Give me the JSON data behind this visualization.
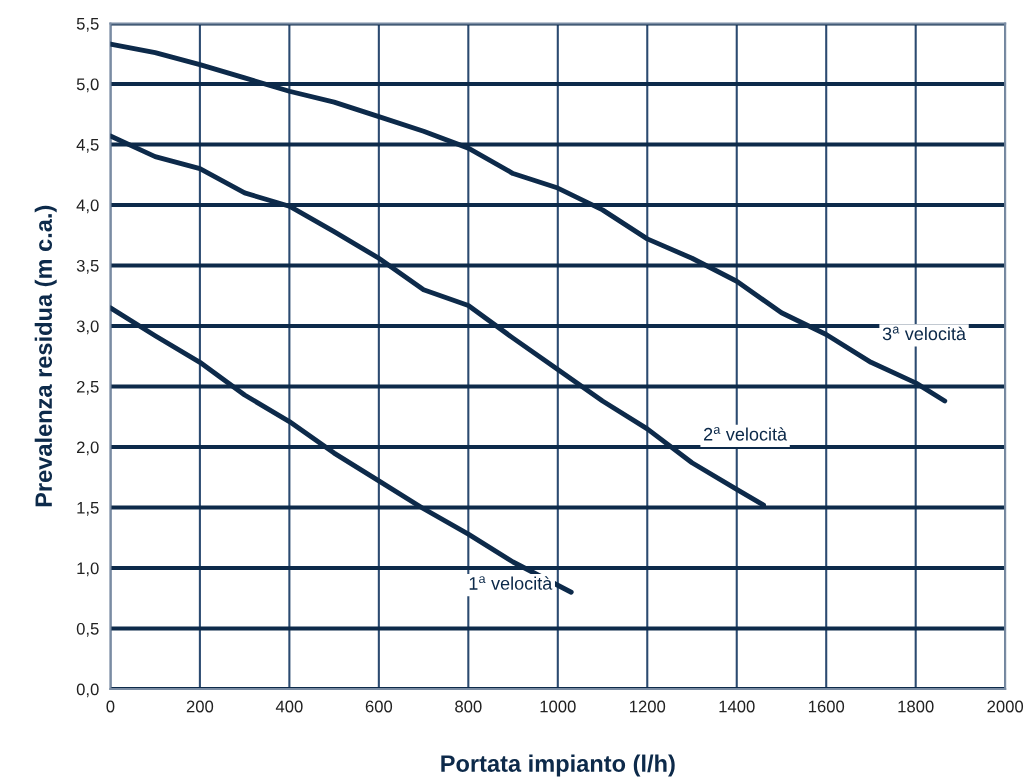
{
  "chart_data": {
    "type": "line",
    "xlabel": "Portata impianto (l/h)",
    "ylabel": "Prevalenza residua (m c.a.)",
    "xlim": [
      0,
      2000
    ],
    "xticks": [
      0,
      200,
      400,
      600,
      800,
      1000,
      1200,
      1400,
      1600,
      1800,
      2000
    ],
    "ylim": [
      0,
      5.5
    ],
    "yticks": [
      {
        "value": 0,
        "label": "0,0"
      },
      {
        "value": 0.5,
        "label": "0,5"
      },
      {
        "value": 1,
        "label": "1,0"
      },
      {
        "value": 1.5,
        "label": "1,5"
      },
      {
        "value": 2,
        "label": "2,0"
      },
      {
        "value": 2.5,
        "label": "2,5"
      },
      {
        "value": 3,
        "label": "3,0"
      },
      {
        "value": 3.5,
        "label": "3,5"
      },
      {
        "value": 4,
        "label": "4,0"
      },
      {
        "value": 4.5,
        "label": "4,5"
      },
      {
        "value": 5,
        "label": "5,0"
      },
      {
        "value": 5.5,
        "label": "5,5"
      }
    ],
    "grid": true,
    "legend": false,
    "marker": "none",
    "line_style": "solid",
    "series": [
      {
        "name": "1$^{a}$ velocità",
        "color": "#0d2a4a",
        "x": [
          0,
          100,
          200,
          300,
          400,
          500,
          600,
          700,
          800,
          900,
          1030
        ],
        "values": [
          3.15,
          2.92,
          2.7,
          2.43,
          2.21,
          1.95,
          1.72,
          1.49,
          1.28,
          1.05,
          0.8
        ]
      },
      {
        "name": "2$^{a}$ velocità",
        "color": "#0d2a4a",
        "x": [
          0,
          100,
          200,
          300,
          400,
          500,
          600,
          700,
          800,
          900,
          1000,
          1100,
          1200,
          1300,
          1400,
          1460
        ],
        "values": [
          4.57,
          4.4,
          4.3,
          4.1,
          3.99,
          3.78,
          3.56,
          3.3,
          3.17,
          2.9,
          2.64,
          2.38,
          2.15,
          1.87,
          1.65,
          1.52
        ]
      },
      {
        "name": "3$^{a}$ velocità",
        "color": "#0d2a4a",
        "x": [
          0,
          100,
          200,
          300,
          400,
          500,
          600,
          700,
          800,
          900,
          1000,
          1100,
          1200,
          1300,
          1400,
          1500,
          1600,
          1700,
          1800,
          1865
        ],
        "values": [
          5.33,
          5.26,
          5.16,
          5.05,
          4.94,
          4.85,
          4.73,
          4.61,
          4.47,
          4.26,
          4.14,
          3.96,
          3.72,
          3.56,
          3.37,
          3.11,
          2.93,
          2.7,
          2.53,
          2.38
        ]
      }
    ]
  }
}
